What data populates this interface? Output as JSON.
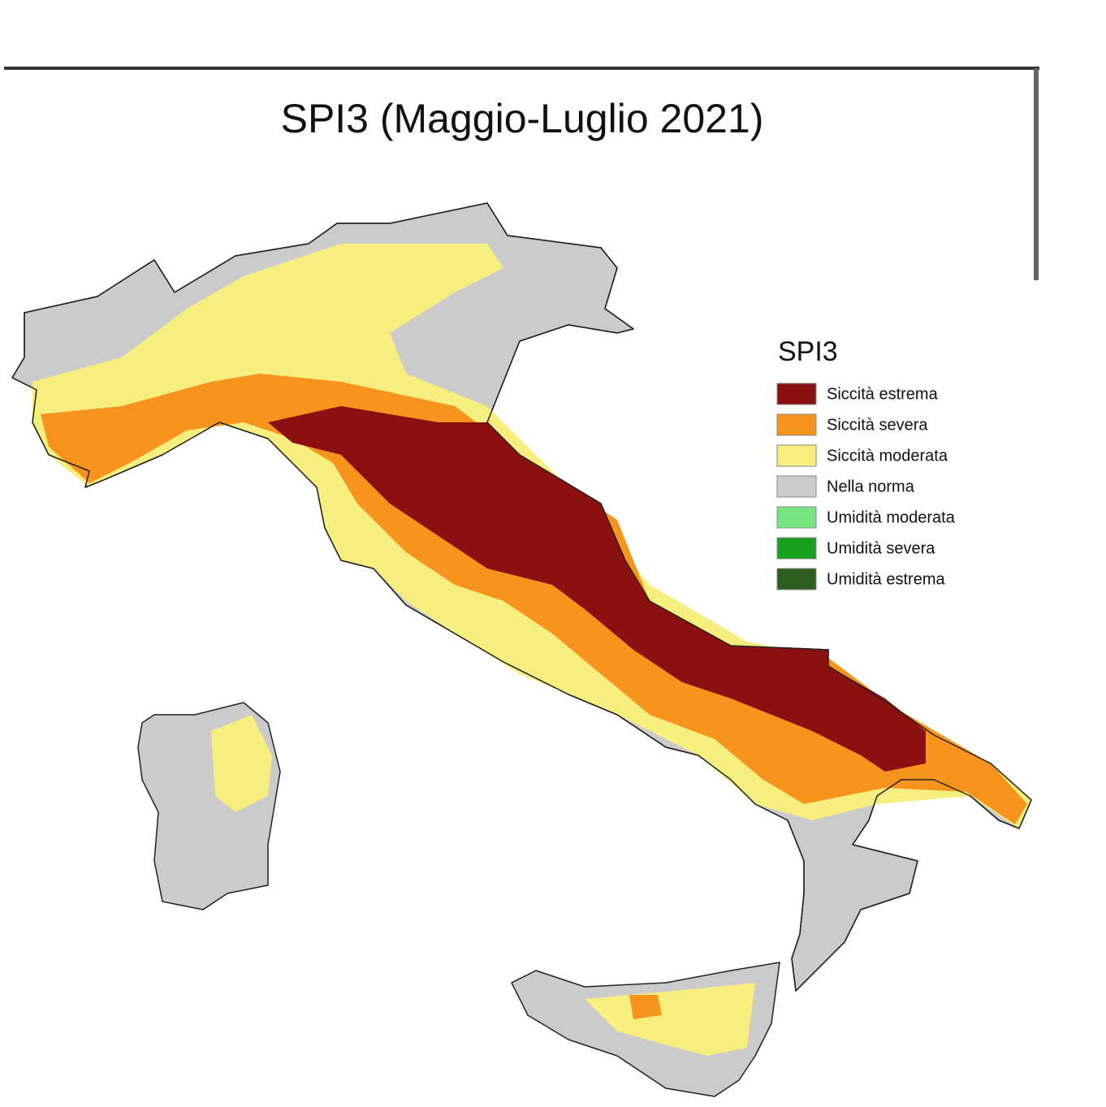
{
  "title": "SPI3 (Maggio-Luglio 2021)",
  "legend": {
    "title": "SPI3",
    "items": [
      {
        "label": "Siccità estrema",
        "color": "#8b1111"
      },
      {
        "label": "Siccità severa",
        "color": "#f7941d"
      },
      {
        "label": "Siccità moderata",
        "color": "#f6ee7e"
      },
      {
        "label": "Nella norma",
        "color": "#cbcbcb"
      },
      {
        "label": "Umidità moderata",
        "color": "#77e57f"
      },
      {
        "label": "Umidità severa",
        "color": "#17a01e"
      },
      {
        "label": "Umidità estrema",
        "color": "#2c5e1f"
      }
    ]
  }
}
